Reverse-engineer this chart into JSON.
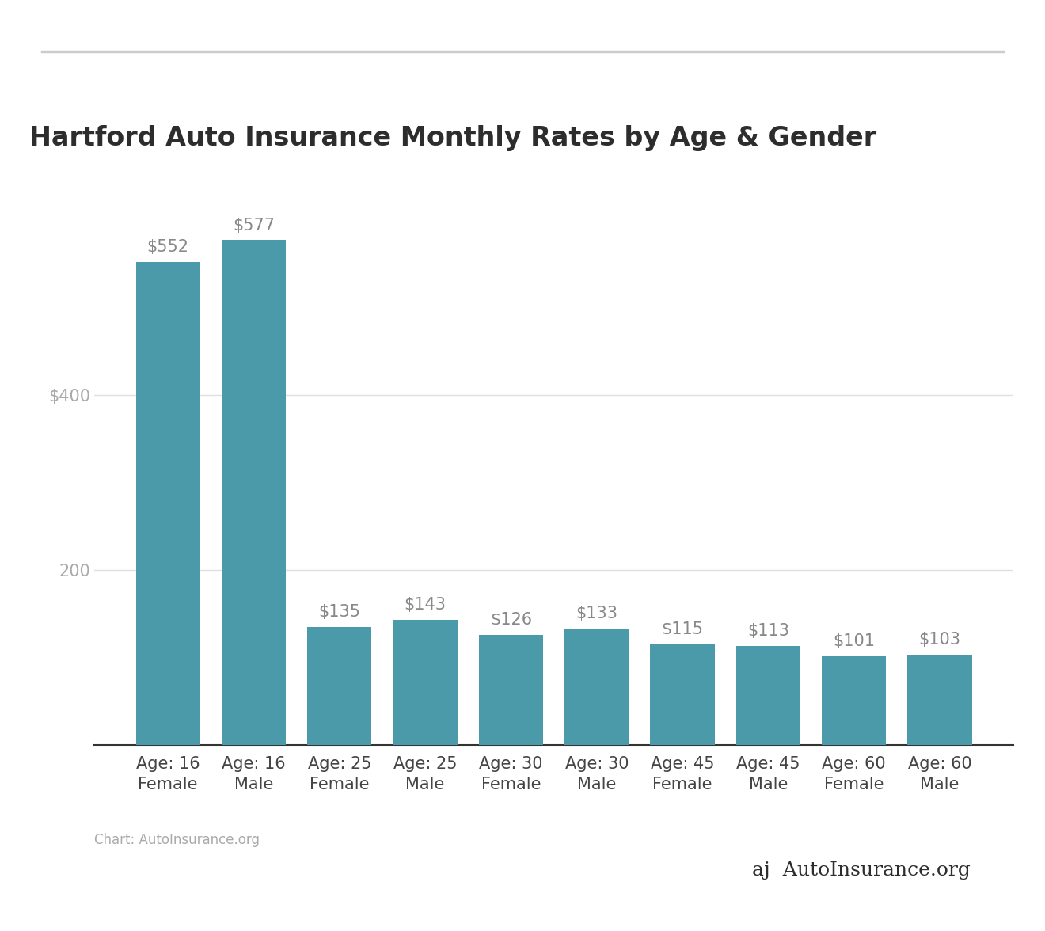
{
  "title": "Hartford Auto Insurance Monthly Rates by Age & Gender",
  "categories": [
    "Age: 16\nFemale",
    "Age: 16\nMale",
    "Age: 25\nFemale",
    "Age: 25\nMale",
    "Age: 30\nFemale",
    "Age: 30\nMale",
    "Age: 45\nFemale",
    "Age: 45\nMale",
    "Age: 60\nFemale",
    "Age: 60\nMale"
  ],
  "values": [
    552,
    577,
    135,
    143,
    126,
    133,
    115,
    113,
    101,
    103
  ],
  "bar_color": "#4a9aaa",
  "bar_labels": [
    "$552",
    "$577",
    "$135",
    "$143",
    "$126",
    "$133",
    "$115",
    "$113",
    "$101",
    "$103"
  ],
  "ytick_vals": [
    200,
    400
  ],
  "ytick_labels": [
    "200",
    "$400"
  ],
  "ylim": [
    0,
    660
  ],
  "title_fontsize": 24,
  "label_fontsize": 15,
  "tick_fontsize": 15,
  "bar_label_fontsize": 15,
  "background_color": "#ffffff",
  "grid_color": "#e0e0e0",
  "top_line_color": "#cccccc",
  "source_text": "Chart: AutoInsurance.org",
  "source_fontsize": 12,
  "source_color": "#aaaaaa",
  "title_color": "#2d2d2d",
  "tick_label_color": "#aaaaaa",
  "bar_label_color": "#888888",
  "xticklabel_color": "#444444",
  "bottom_spine_color": "#333333",
  "bar_width": 0.75
}
